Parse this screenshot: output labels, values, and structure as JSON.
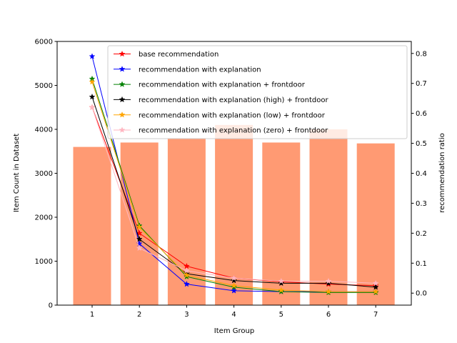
{
  "chart_data": {
    "type": "bar",
    "xlabel": "Item Group",
    "ylabel": "Item Count in Dataset",
    "y2label": "recommendation ratio",
    "categories": [
      1,
      2,
      3,
      4,
      5,
      6,
      7
    ],
    "bar_series": {
      "values": [
        3600,
        3700,
        3800,
        4100,
        3700,
        4000,
        3680
      ],
      "color": "#ff9a73"
    },
    "ylim": [
      0,
      6000
    ],
    "yticks": [
      0,
      1000,
      2000,
      3000,
      4000,
      5000,
      6000
    ],
    "y2lim": [
      -0.04,
      0.84
    ],
    "y2ticks": [
      "0.0",
      "0.1",
      "0.2",
      "0.3",
      "0.4",
      "0.5",
      "0.6",
      "0.7",
      "0.8"
    ],
    "xticks": [
      "1",
      "2",
      "3",
      "4",
      "5",
      "6",
      "7"
    ],
    "legend_placement": "top-right",
    "series": [
      {
        "name": "base recommendation",
        "color": "#ff0000",
        "values": [
          0.62,
          0.2,
          0.09,
          0.05,
          0.038,
          0.03,
          0.025
        ]
      },
      {
        "name": "recommendation with explanation",
        "color": "#0000ff",
        "values": [
          0.79,
          0.165,
          0.03,
          0.008,
          0.005,
          0.005,
          0.005
        ]
      },
      {
        "name": "recommendation with explanation + frontdoor",
        "color": "#008000",
        "values": [
          0.715,
          0.225,
          0.055,
          0.02,
          0.005,
          0.002,
          0.002
        ]
      },
      {
        "name": "recommendation with explanation (high) + frontdoor",
        "color": "#000000",
        "values": [
          0.655,
          0.18,
          0.065,
          0.042,
          0.033,
          0.033,
          0.02
        ]
      },
      {
        "name": "recommendation with explanation (low) + frontdoor",
        "color": "#ffa500",
        "values": [
          0.705,
          0.22,
          0.06,
          0.025,
          0.01,
          0.005,
          0.005
        ]
      },
      {
        "name": "recommendation with explanation (zero) + frontdoor",
        "color": "#ffb6c1",
        "values": [
          0.62,
          0.15,
          0.075,
          0.05,
          0.04,
          0.04,
          0.033
        ]
      }
    ]
  }
}
